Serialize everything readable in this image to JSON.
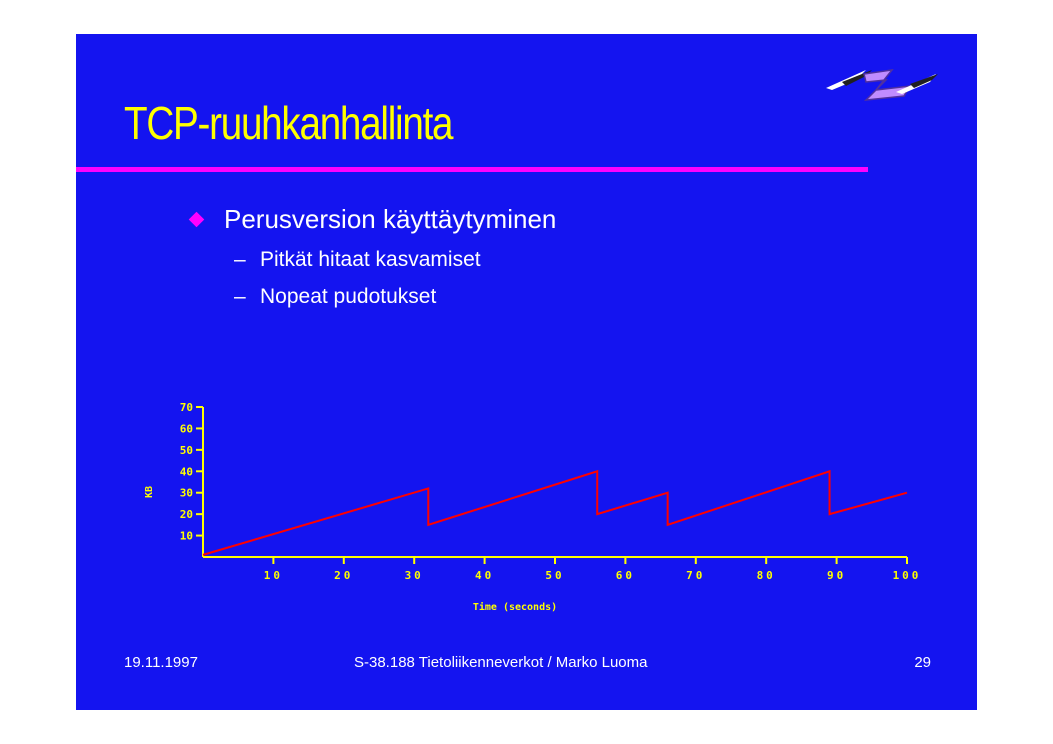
{
  "slide": {
    "title": "TCP-ruuhkanhallinta",
    "bullet": "Perusversion käyttäytyminen",
    "sub_bullets": [
      {
        "dash": "–",
        "text": "Pitkät hitaat kasvamiset"
      },
      {
        "dash": "–",
        "text": "Nopeat pudotukset"
      }
    ],
    "logo_icon": "stylized-z-logo-icon"
  },
  "footer": {
    "date": "19.11.1997",
    "course": "S-38.188 Tietoliikenneverkot / Marko Luoma",
    "page": "29"
  },
  "colors": {
    "background": "#1414f0",
    "title": "#ffff00",
    "rule": "#ff00ff",
    "axis": "#ffff00",
    "series": "#ff0000"
  },
  "chart_data": {
    "type": "line",
    "xlabel": "Time (seconds)",
    "ylabel": "KB",
    "xlim": [
      0,
      100
    ],
    "ylim": [
      0,
      70
    ],
    "x_ticks": [
      10,
      20,
      30,
      40,
      50,
      60,
      70,
      80,
      90,
      100
    ],
    "x_tick_labels": [
      "10",
      "20",
      "30",
      "40",
      "50",
      "60",
      "70",
      "80",
      "90",
      "100"
    ],
    "y_ticks": [
      10,
      20,
      30,
      40,
      50,
      60,
      70
    ],
    "y_tick_labels": [
      "10",
      "20",
      "30",
      "40",
      "50",
      "60",
      "70"
    ],
    "grid": false,
    "series": [
      {
        "x": [
          0,
          32,
          32,
          56,
          56,
          66,
          66,
          89,
          89,
          100
        ],
        "y": [
          1,
          32,
          15,
          40,
          20,
          30,
          15,
          40,
          20,
          30
        ]
      }
    ]
  }
}
